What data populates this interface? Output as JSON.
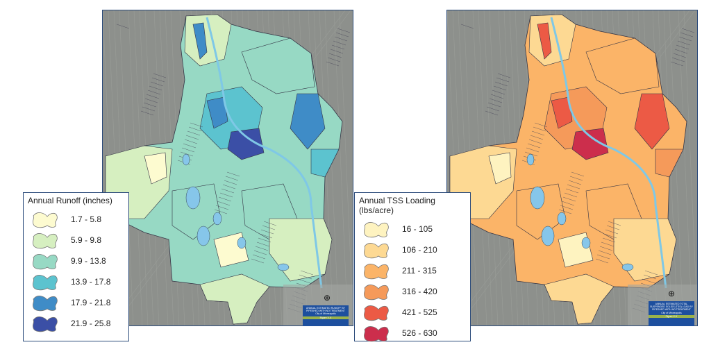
{
  "maps": [
    {
      "legend_title": "Annual Runoff (inches)",
      "classes": [
        {
          "label": "1.7 - 5.8",
          "color": "#fdfbd0"
        },
        {
          "label": "5.9 - 9.8",
          "color": "#d6efc0"
        },
        {
          "label": "9.9 - 13.8",
          "color": "#97d9c4"
        },
        {
          "label": "13.9 - 17.8",
          "color": "#5cc3cf"
        },
        {
          "label": "17.9 - 21.8",
          "color": "#3f8cc7"
        },
        {
          "label": "21.9 - 25.8",
          "color": "#3b4fa6"
        }
      ],
      "title_block": "ANNUAL ESTIMATED RUNOFF BY PIPESHED WITH NO TREATMENT",
      "city": "City of Minneapolis",
      "figure": "Figure X-X"
    },
    {
      "legend_title": "Annual TSS Loading (lbs/acre)",
      "classes": [
        {
          "label": "16 - 105",
          "color": "#fef3c0"
        },
        {
          "label": "106 - 210",
          "color": "#fdd993"
        },
        {
          "label": "211 - 315",
          "color": "#fbb468"
        },
        {
          "label": "316 - 420",
          "color": "#f59a5a"
        },
        {
          "label": "421 - 525",
          "color": "#ec5a45"
        },
        {
          "label": "526 - 630",
          "color": "#cc2e4c"
        }
      ],
      "title_block": "ANNUAL ESTIMATED TOTAL SUSPENDED SOLIDS (TSS) LOAD BY PIPESHED WITH NO TREATMENT",
      "city": "City of Minneapolis",
      "figure": "Figure X-X"
    }
  ]
}
